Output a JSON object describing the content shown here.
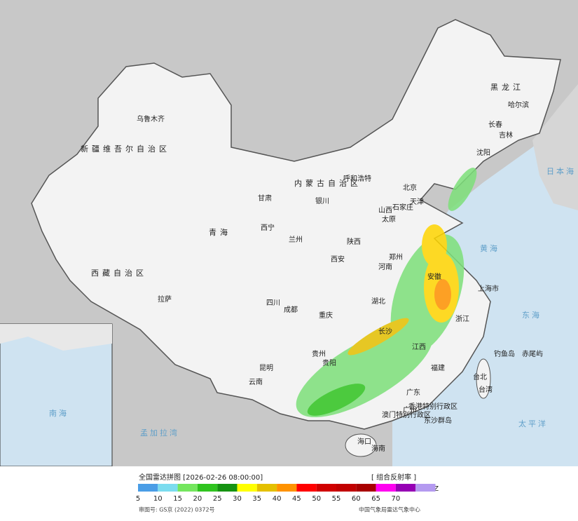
{
  "map": {
    "labels": [
      "新疆维吾尔自治区",
      "乌鲁木齐",
      "西藏自治区",
      "拉萨",
      "青海",
      "西宁",
      "甘肃",
      "兰州",
      "银川",
      "内蒙古自治区",
      "呼和浩特",
      "北京",
      "天津",
      "石家庄",
      "太原",
      "山西",
      "陕西",
      "西安",
      "河南",
      "郑州",
      "四川",
      "成都",
      "重庆",
      "云南",
      "昆明",
      "贵州",
      "贵阳",
      "长沙",
      "湖北",
      "安徽",
      "上海市",
      "浙江",
      "福建",
      "江西",
      "广东",
      "广州",
      "海口",
      "海南",
      "香港特别行政区",
      "澳门特别行政区",
      "台北",
      "台湾",
      "钓鱼岛",
      "赤尾屿",
      "东沙群岛",
      "黑龙江",
      "哈尔滨",
      "吉林",
      "长春",
      "沈阳",
      "日本海",
      "黄海",
      "东海",
      "太平洋",
      "孟加拉湾",
      "南海"
    ]
  },
  "legend": {
    "title": "全国雷达拼图 [2026-02-26 08:00:00]",
    "product": "[ 组合反射率 ]",
    "unit": "dBZ",
    "labels": [
      5,
      10,
      15,
      20,
      25,
      30,
      35,
      40,
      45,
      50,
      55,
      60,
      65,
      70
    ],
    "colors": [
      "#4a9de6",
      "#7bdcef",
      "#74e65e",
      "#2fc41f",
      "#169312",
      "#ffff00",
      "#e4c000",
      "#ff9200",
      "#ff0000",
      "#d00000",
      "#c10000",
      "#a80000",
      "#ff00f0",
      "#9600b4",
      "#b49af0"
    ]
  },
  "footer": {
    "approval": "审图号: GS京 (2022) 0372号",
    "source": "中国气象局雷达气象中心"
  }
}
